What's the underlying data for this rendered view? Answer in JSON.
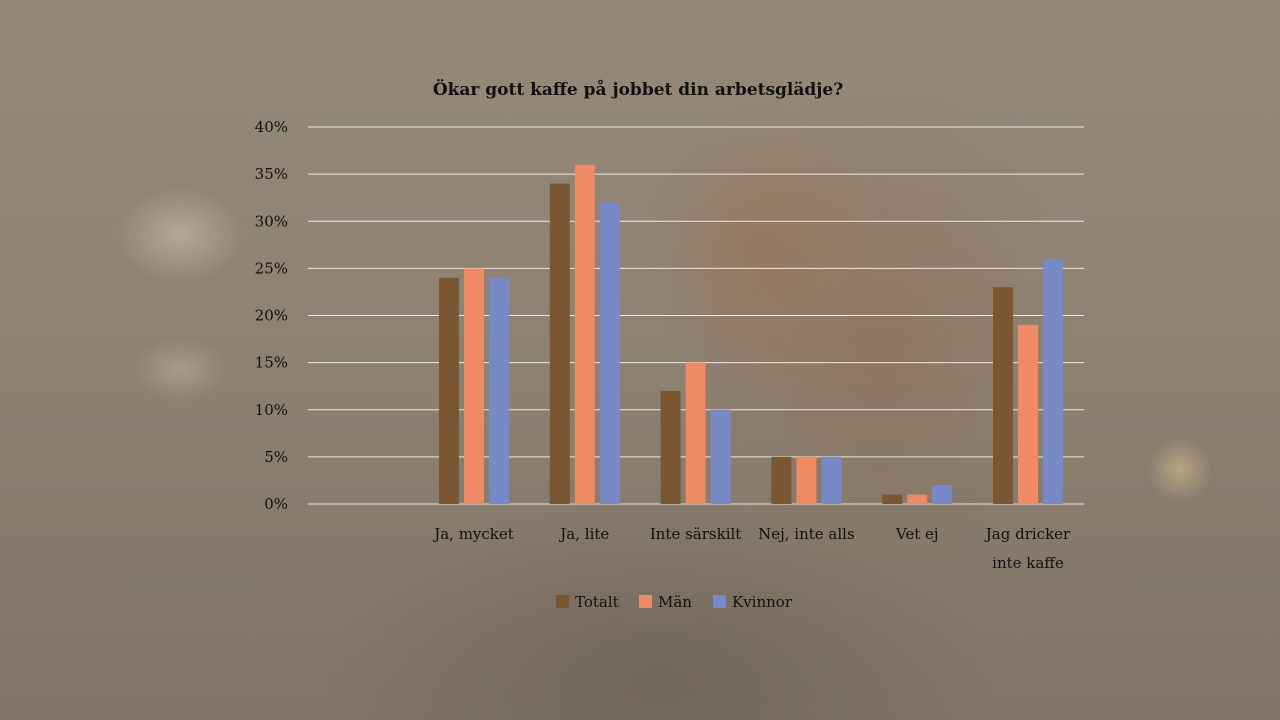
{
  "chart_data": {
    "type": "bar",
    "title": "Ökar gott kaffe på jobbet din arbetsglädje?",
    "xlabel": "",
    "ylabel": "",
    "ylim": [
      0,
      40
    ],
    "yticks": [
      0,
      5,
      10,
      15,
      20,
      25,
      30,
      35,
      40
    ],
    "ytick_labels": [
      "0%",
      "5%",
      "10%",
      "15%",
      "20%",
      "25%",
      "30%",
      "35%",
      "40%"
    ],
    "categories": [
      [
        "Ja, mycket"
      ],
      [
        "Ja, lite"
      ],
      [
        "Inte särskilt"
      ],
      [
        "Nej, inte alls"
      ],
      [
        "Vet ej"
      ],
      [
        "Jag dricker",
        "inte kaffe"
      ]
    ],
    "series": [
      {
        "name": "Totalt",
        "color": "#7a5632",
        "values": [
          24,
          34,
          12,
          5,
          1,
          23
        ]
      },
      {
        "name": "Män",
        "color": "#ee8a64",
        "values": [
          25,
          36,
          15,
          5,
          1,
          19
        ]
      },
      {
        "name": "Kvinnor",
        "color": "#7889c8",
        "values": [
          24,
          32,
          10,
          5,
          2,
          26
        ]
      }
    ],
    "grid": true,
    "legend": "bottom"
  }
}
